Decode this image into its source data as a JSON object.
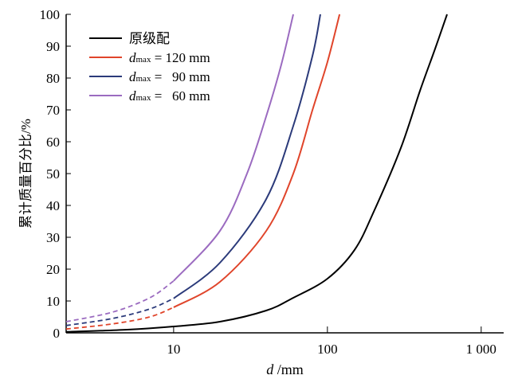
{
  "chart_data": {
    "type": "line",
    "xlabel_italic": "d",
    "xlabel_unit": " /mm",
    "ylabel": "累计质量百分比/%",
    "xscale": "log",
    "xlim": [
      2,
      1400
    ],
    "ylim": [
      0,
      100
    ],
    "xticks": [
      {
        "v": 10,
        "label": "10"
      },
      {
        "v": 100,
        "label": "100"
      },
      {
        "v": 1000,
        "label": "1 000"
      }
    ],
    "yticks": [
      0,
      10,
      20,
      30,
      40,
      50,
      60,
      70,
      80,
      90,
      100
    ],
    "grid": false,
    "legend_placement": "top-left",
    "series": [
      {
        "name": "原级配",
        "color": "#000000",
        "legend_prefix": "",
        "legend_sub": "",
        "legend_text": "原级配",
        "solid": [
          [
            2,
            0.3
          ],
          [
            5,
            1
          ],
          [
            10,
            2
          ],
          [
            20,
            3.5
          ],
          [
            40,
            7
          ],
          [
            60,
            11
          ],
          [
            100,
            17
          ],
          [
            150,
            26
          ],
          [
            200,
            38
          ],
          [
            300,
            58
          ],
          [
            400,
            76
          ],
          [
            500,
            89
          ],
          [
            600,
            100
          ]
        ],
        "dashed": []
      },
      {
        "name": "dmax = 120 mm",
        "color": "#e0452b",
        "legend_prefix": "d",
        "legend_sub": "max",
        "legend_text": " = 120 mm",
        "dashed": [
          [
            2,
            1.2
          ],
          [
            4,
            2.8
          ],
          [
            7,
            5
          ],
          [
            10,
            8
          ]
        ],
        "solid": [
          [
            10,
            8
          ],
          [
            20,
            16
          ],
          [
            40,
            32
          ],
          [
            60,
            50
          ],
          [
            80,
            70
          ],
          [
            100,
            85
          ],
          [
            120,
            100
          ]
        ]
      },
      {
        "name": "dmax = 90 mm",
        "color": "#2b3a7a",
        "legend_prefix": "d",
        "legend_sub": "max",
        "legend_text": " =   90 mm",
        "dashed": [
          [
            2,
            2.3
          ],
          [
            4,
            4.5
          ],
          [
            7,
            7.5
          ],
          [
            10,
            10.8
          ]
        ],
        "solid": [
          [
            10,
            10.8
          ],
          [
            20,
            22
          ],
          [
            40,
            42
          ],
          [
            60,
            65
          ],
          [
            80,
            87
          ],
          [
            90,
            100
          ]
        ]
      },
      {
        "name": "dmax = 60 mm",
        "color": "#9b6bc0",
        "legend_prefix": "d",
        "legend_sub": "max",
        "legend_text": " =   60 mm",
        "dashed": [
          [
            2,
            3.5
          ],
          [
            4,
            6.5
          ],
          [
            7,
            11
          ],
          [
            10,
            16.3
          ]
        ],
        "solid": [
          [
            10,
            16.3
          ],
          [
            20,
            32
          ],
          [
            30,
            50
          ],
          [
            40,
            68
          ],
          [
            50,
            84
          ],
          [
            60,
            100
          ]
        ]
      }
    ]
  }
}
